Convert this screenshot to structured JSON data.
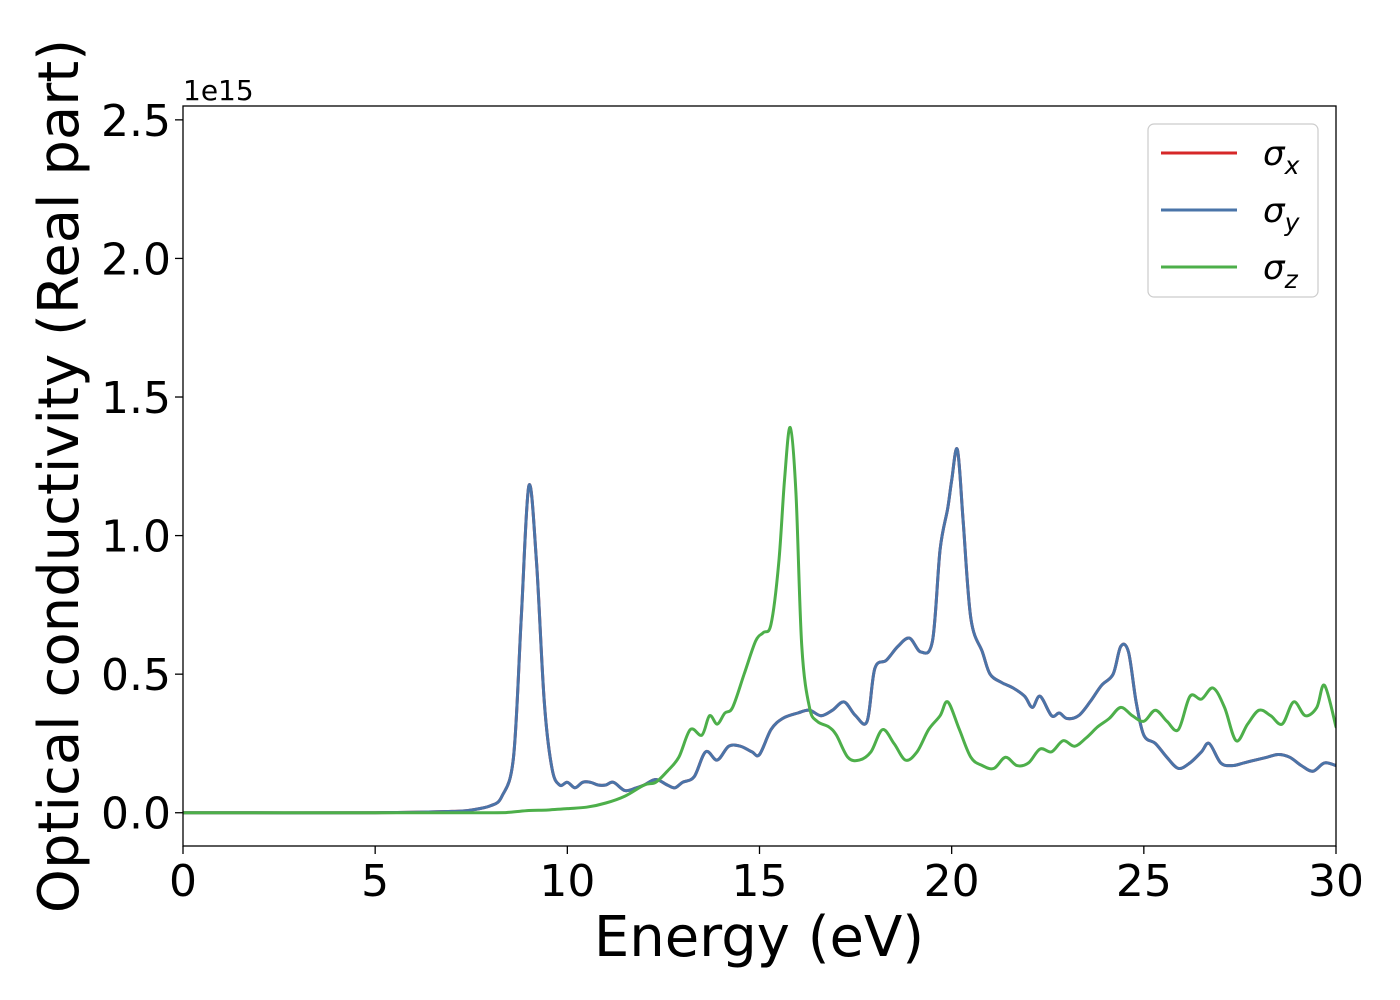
{
  "chart_data": {
    "type": "line",
    "xlabel": "Energy (eV)",
    "ylabel": "Optical conductivity (Real part)",
    "offset_text": "1e15",
    "xlim": [
      0,
      30
    ],
    "ylim": [
      -0.12,
      2.55
    ],
    "xticks": [
      0,
      5,
      10,
      15,
      20,
      25,
      30
    ],
    "xtick_labels": [
      "0",
      "5",
      "10",
      "15",
      "20",
      "25",
      "30"
    ],
    "yticks": [
      0.0,
      0.5,
      1.0,
      1.5,
      2.0,
      2.5
    ],
    "ytick_labels": [
      "0.0",
      "0.5",
      "1.0",
      "1.5",
      "2.0",
      "2.5"
    ],
    "y_scale_factor": 1000000000000000.0,
    "grid": false,
    "legend_position": "top-right",
    "series": [
      {
        "name": "σx",
        "legend_main": "σ",
        "legend_sub": "x",
        "color": "#d62728",
        "x": [
          0,
          5,
          7,
          7.5,
          8,
          8.3,
          8.6,
          8.8,
          9.0,
          9.2,
          9.4,
          9.6,
          9.8,
          10.0,
          10.2,
          10.4,
          10.6,
          10.8,
          11.0,
          11.2,
          11.5,
          11.8,
          12.0,
          12.3,
          12.6,
          12.8,
          13.0,
          13.3,
          13.6,
          13.9,
          14.2,
          14.5,
          14.8,
          15.0,
          15.3,
          15.6,
          16.0,
          16.3,
          16.6,
          16.9,
          17.2,
          17.5,
          17.8,
          18.0,
          18.3,
          18.6,
          18.9,
          19.2,
          19.5,
          19.7,
          19.9,
          20.0,
          20.15,
          20.3,
          20.5,
          20.8,
          21.0,
          21.3,
          21.6,
          21.9,
          22.1,
          22.3,
          22.6,
          22.8,
          23.0,
          23.3,
          23.6,
          23.9,
          24.2,
          24.4,
          24.6,
          24.8,
          25.0,
          25.3,
          25.6,
          25.9,
          26.2,
          26.5,
          26.7,
          27.0,
          27.3,
          27.6,
          27.9,
          28.2,
          28.5,
          28.8,
          29.1,
          29.4,
          29.7,
          30.0
        ],
        "values": [
          0.0,
          0.0,
          0.005,
          0.01,
          0.025,
          0.06,
          0.2,
          0.7,
          1.18,
          0.9,
          0.4,
          0.16,
          0.1,
          0.11,
          0.09,
          0.11,
          0.11,
          0.1,
          0.1,
          0.11,
          0.08,
          0.09,
          0.1,
          0.12,
          0.1,
          0.09,
          0.11,
          0.13,
          0.22,
          0.19,
          0.24,
          0.24,
          0.22,
          0.21,
          0.3,
          0.34,
          0.36,
          0.37,
          0.35,
          0.37,
          0.4,
          0.35,
          0.33,
          0.52,
          0.55,
          0.6,
          0.63,
          0.58,
          0.62,
          0.95,
          1.1,
          1.2,
          1.31,
          1.05,
          0.7,
          0.58,
          0.5,
          0.47,
          0.45,
          0.42,
          0.38,
          0.42,
          0.35,
          0.36,
          0.34,
          0.35,
          0.4,
          0.46,
          0.5,
          0.6,
          0.58,
          0.4,
          0.28,
          0.25,
          0.2,
          0.16,
          0.18,
          0.22,
          0.25,
          0.18,
          0.17,
          0.18,
          0.19,
          0.2,
          0.21,
          0.2,
          0.17,
          0.15,
          0.18,
          0.17
        ]
      },
      {
        "name": "σy",
        "legend_main": "σ",
        "legend_sub": "y",
        "color": "#4a74a8",
        "x": [
          0,
          5,
          7,
          7.5,
          8,
          8.3,
          8.6,
          8.8,
          9.0,
          9.2,
          9.4,
          9.6,
          9.8,
          10.0,
          10.2,
          10.4,
          10.6,
          10.8,
          11.0,
          11.2,
          11.5,
          11.8,
          12.0,
          12.3,
          12.6,
          12.8,
          13.0,
          13.3,
          13.6,
          13.9,
          14.2,
          14.5,
          14.8,
          15.0,
          15.3,
          15.6,
          16.0,
          16.3,
          16.6,
          16.9,
          17.2,
          17.5,
          17.8,
          18.0,
          18.3,
          18.6,
          18.9,
          19.2,
          19.5,
          19.7,
          19.9,
          20.0,
          20.15,
          20.3,
          20.5,
          20.8,
          21.0,
          21.3,
          21.6,
          21.9,
          22.1,
          22.3,
          22.6,
          22.8,
          23.0,
          23.3,
          23.6,
          23.9,
          24.2,
          24.4,
          24.6,
          24.8,
          25.0,
          25.3,
          25.6,
          25.9,
          26.2,
          26.5,
          26.7,
          27.0,
          27.3,
          27.6,
          27.9,
          28.2,
          28.5,
          28.8,
          29.1,
          29.4,
          29.7,
          30.0
        ],
        "values": [
          0.0,
          0.0,
          0.005,
          0.01,
          0.025,
          0.06,
          0.2,
          0.7,
          1.18,
          0.9,
          0.4,
          0.16,
          0.1,
          0.11,
          0.09,
          0.11,
          0.11,
          0.1,
          0.1,
          0.11,
          0.08,
          0.09,
          0.1,
          0.12,
          0.1,
          0.09,
          0.11,
          0.13,
          0.22,
          0.19,
          0.24,
          0.24,
          0.22,
          0.21,
          0.3,
          0.34,
          0.36,
          0.37,
          0.35,
          0.37,
          0.4,
          0.35,
          0.33,
          0.52,
          0.55,
          0.6,
          0.63,
          0.58,
          0.62,
          0.95,
          1.1,
          1.2,
          1.31,
          1.05,
          0.7,
          0.58,
          0.5,
          0.47,
          0.45,
          0.42,
          0.38,
          0.42,
          0.35,
          0.36,
          0.34,
          0.35,
          0.4,
          0.46,
          0.5,
          0.6,
          0.58,
          0.4,
          0.28,
          0.25,
          0.2,
          0.16,
          0.18,
          0.22,
          0.25,
          0.18,
          0.17,
          0.18,
          0.19,
          0.2,
          0.21,
          0.2,
          0.17,
          0.15,
          0.18,
          0.17
        ]
      },
      {
        "name": "σz",
        "legend_main": "σ",
        "legend_sub": "z",
        "color": "#4daf4a",
        "x": [
          0,
          5,
          8,
          8.5,
          9.0,
          9.5,
          10.0,
          10.5,
          11.0,
          11.5,
          12.0,
          12.3,
          12.6,
          12.9,
          13.2,
          13.5,
          13.7,
          13.9,
          14.1,
          14.3,
          14.6,
          14.9,
          15.1,
          15.3,
          15.5,
          15.65,
          15.8,
          15.95,
          16.1,
          16.3,
          16.5,
          16.8,
          17.0,
          17.3,
          17.6,
          17.9,
          18.2,
          18.5,
          18.8,
          19.1,
          19.4,
          19.7,
          19.9,
          20.2,
          20.5,
          20.8,
          21.1,
          21.4,
          21.7,
          22.0,
          22.3,
          22.6,
          22.9,
          23.2,
          23.5,
          23.8,
          24.1,
          24.4,
          24.7,
          25.0,
          25.3,
          25.6,
          25.9,
          26.2,
          26.5,
          26.8,
          27.1,
          27.4,
          27.7,
          28.0,
          28.3,
          28.6,
          28.9,
          29.2,
          29.5,
          29.7,
          30.0
        ],
        "values": [
          0.0,
          0.0,
          0.0,
          0.002,
          0.008,
          0.01,
          0.015,
          0.02,
          0.035,
          0.06,
          0.1,
          0.11,
          0.15,
          0.2,
          0.3,
          0.28,
          0.35,
          0.32,
          0.36,
          0.38,
          0.5,
          0.62,
          0.65,
          0.68,
          0.9,
          1.2,
          1.39,
          1.15,
          0.6,
          0.38,
          0.33,
          0.31,
          0.28,
          0.2,
          0.19,
          0.22,
          0.3,
          0.25,
          0.19,
          0.22,
          0.3,
          0.35,
          0.4,
          0.3,
          0.2,
          0.17,
          0.16,
          0.2,
          0.17,
          0.18,
          0.23,
          0.22,
          0.26,
          0.24,
          0.27,
          0.31,
          0.34,
          0.38,
          0.35,
          0.33,
          0.37,
          0.33,
          0.3,
          0.42,
          0.41,
          0.45,
          0.38,
          0.26,
          0.32,
          0.37,
          0.35,
          0.32,
          0.4,
          0.35,
          0.38,
          0.46,
          0.31
        ]
      }
    ]
  }
}
